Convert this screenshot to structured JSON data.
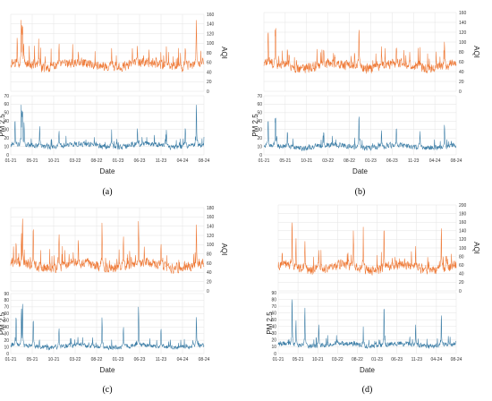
{
  "colors": {
    "aqi": "#ee7733",
    "pm25": "#3a7ca5",
    "grid": "#e3e3e3"
  },
  "chart_data": [
    {
      "type": "line",
      "panel_label": "(a)",
      "x_ticks": [
        "01-21",
        "05-21",
        "10-21",
        "03-22",
        "08-22",
        "01-23",
        "06-23",
        "11-23",
        "04-24",
        "08-24"
      ],
      "xlabel": "Date",
      "top": {
        "ylabel": "AQI",
        "ylim": [
          0,
          160
        ],
        "y_ticks": [
          "0",
          "20",
          "40",
          "60",
          "80",
          "100",
          "120",
          "140",
          "160"
        ],
        "baseline": 55,
        "spread": 11,
        "floor": 15,
        "spikes": [
          [
            0.3,
            120
          ],
          [
            0.49,
            150
          ],
          [
            0.52,
            152
          ],
          [
            0.55,
            145
          ],
          [
            0.6,
            110
          ],
          [
            1.3,
            110
          ],
          [
            2.25,
            105
          ],
          [
            3.15,
            90
          ],
          [
            4.7,
            90
          ],
          [
            5.9,
            100
          ],
          [
            7.25,
            95
          ],
          [
            8.13,
            100
          ],
          [
            8.65,
            155
          ]
        ]
      },
      "bottom": {
        "ylabel": "PM 2.5",
        "ylim": [
          0,
          70
        ],
        "y_ticks": [
          "0",
          "10",
          "20",
          "30",
          "40",
          "50",
          "60",
          "70"
        ],
        "baseline": 11,
        "spread": 3.5,
        "floor": 1,
        "spikes": [
          [
            0.2,
            45
          ],
          [
            0.49,
            60
          ],
          [
            0.52,
            58
          ],
          [
            0.55,
            55
          ],
          [
            0.62,
            40
          ],
          [
            1.35,
            35
          ],
          [
            2.25,
            30
          ],
          [
            4.7,
            30
          ],
          [
            5.9,
            33
          ],
          [
            7.25,
            30
          ],
          [
            8.13,
            35
          ],
          [
            8.65,
            62
          ]
        ]
      }
    },
    {
      "type": "line",
      "panel_label": "(b)",
      "x_ticks": [
        "01-21",
        "05-21",
        "10-21",
        "03-22",
        "08-22",
        "01-23",
        "06-23",
        "11-23",
        "04-24",
        "08-24"
      ],
      "xlabel": "Date",
      "top": {
        "ylabel": "AQI",
        "ylim": [
          0,
          160
        ],
        "y_ticks": [
          "0",
          "20",
          "40",
          "60",
          "80",
          "100",
          "120",
          "140",
          "160"
        ],
        "baseline": 52,
        "spread": 11,
        "floor": 10,
        "spikes": [
          [
            0.2,
            135
          ],
          [
            0.53,
            130
          ],
          [
            0.55,
            138
          ],
          [
            1.1,
            95
          ],
          [
            2.8,
            95
          ],
          [
            4.45,
            138
          ],
          [
            5.5,
            95
          ],
          [
            6.2,
            100
          ],
          [
            7.3,
            90
          ],
          [
            8.45,
            108
          ]
        ]
      },
      "bottom": {
        "ylabel": "PM 2.5",
        "ylim": [
          0,
          70
        ],
        "y_ticks": [
          "0",
          "10",
          "20",
          "30",
          "40",
          "50",
          "60",
          "70"
        ],
        "baseline": 10,
        "spread": 3.5,
        "floor": 1,
        "spikes": [
          [
            0.2,
            45
          ],
          [
            0.53,
            45
          ],
          [
            0.55,
            47
          ],
          [
            1.1,
            30
          ],
          [
            2.8,
            30
          ],
          [
            4.45,
            50
          ],
          [
            5.5,
            30
          ],
          [
            6.2,
            35
          ],
          [
            7.3,
            28
          ],
          [
            8.45,
            38
          ]
        ]
      }
    },
    {
      "type": "line",
      "panel_label": "(c)",
      "x_ticks": [
        "01-21",
        "05-21",
        "10-21",
        "03-22",
        "08-22",
        "01-23",
        "06-23",
        "11-23",
        "04-24",
        "08-24"
      ],
      "xlabel": "Date",
      "top": {
        "ylabel": "AQI",
        "ylim": [
          0,
          180
        ],
        "y_ticks": [
          "0",
          "20",
          "40",
          "60",
          "80",
          "100",
          "120",
          "140",
          "160",
          "180"
        ],
        "baseline": 55,
        "spread": 12,
        "floor": 10,
        "spikes": [
          [
            0.25,
            115
          ],
          [
            0.5,
            130
          ],
          [
            0.55,
            168
          ],
          [
            1.05,
            150
          ],
          [
            2.25,
            130
          ],
          [
            3.15,
            120
          ],
          [
            4.25,
            150
          ],
          [
            5.25,
            125
          ],
          [
            5.95,
            155
          ],
          [
            7.0,
            110
          ],
          [
            8.65,
            150
          ]
        ]
      },
      "bottom": {
        "ylabel": "PM 2.5",
        "ylim": [
          0,
          90
        ],
        "y_ticks": [
          "0",
          "10",
          "20",
          "30",
          "40",
          "50",
          "60",
          "70",
          "80",
          "90"
        ],
        "baseline": 11,
        "spread": 4,
        "floor": 1,
        "spikes": [
          [
            0.25,
            60
          ],
          [
            0.5,
            70
          ],
          [
            0.55,
            80
          ],
          [
            1.05,
            55
          ],
          [
            2.25,
            40
          ],
          [
            4.25,
            55
          ],
          [
            5.25,
            42
          ],
          [
            5.95,
            72
          ],
          [
            7.0,
            40
          ],
          [
            8.65,
            57
          ]
        ]
      }
    },
    {
      "type": "line",
      "panel_label": "(d)",
      "x_ticks": [
        "01-21",
        "05-21",
        "10-21",
        "03-22",
        "08-22",
        "01-23",
        "06-23",
        "11-23",
        "04-24",
        "08-24"
      ],
      "xlabel": "Date",
      "top": {
        "ylabel": "AQI",
        "ylim": [
          0,
          200
        ],
        "y_ticks": [
          "0",
          "20",
          "40",
          "60",
          "80",
          "100",
          "120",
          "140",
          "160",
          "180",
          "200"
        ],
        "baseline": 55,
        "spread": 12,
        "floor": 15,
        "spikes": [
          [
            0.2,
            100
          ],
          [
            0.7,
            175
          ],
          [
            0.9,
            125
          ],
          [
            1.35,
            120
          ],
          [
            2.05,
            100
          ],
          [
            3.8,
            145
          ],
          [
            4.3,
            150
          ],
          [
            5.35,
            160
          ],
          [
            6.95,
            110
          ],
          [
            8.25,
            155
          ]
        ]
      },
      "bottom": {
        "ylabel": "PM 2.5",
        "ylim": [
          0,
          90
        ],
        "y_ticks": [
          "0",
          "10",
          "20",
          "30",
          "40",
          "50",
          "60",
          "70",
          "80",
          "90"
        ],
        "baseline": 13,
        "spread": 4,
        "floor": 2,
        "spikes": [
          [
            0.7,
            88
          ],
          [
            0.9,
            50
          ],
          [
            1.35,
            70
          ],
          [
            2.05,
            45
          ],
          [
            4.3,
            40
          ],
          [
            5.35,
            75
          ],
          [
            6.95,
            45
          ],
          [
            8.25,
            60
          ]
        ]
      }
    }
  ]
}
